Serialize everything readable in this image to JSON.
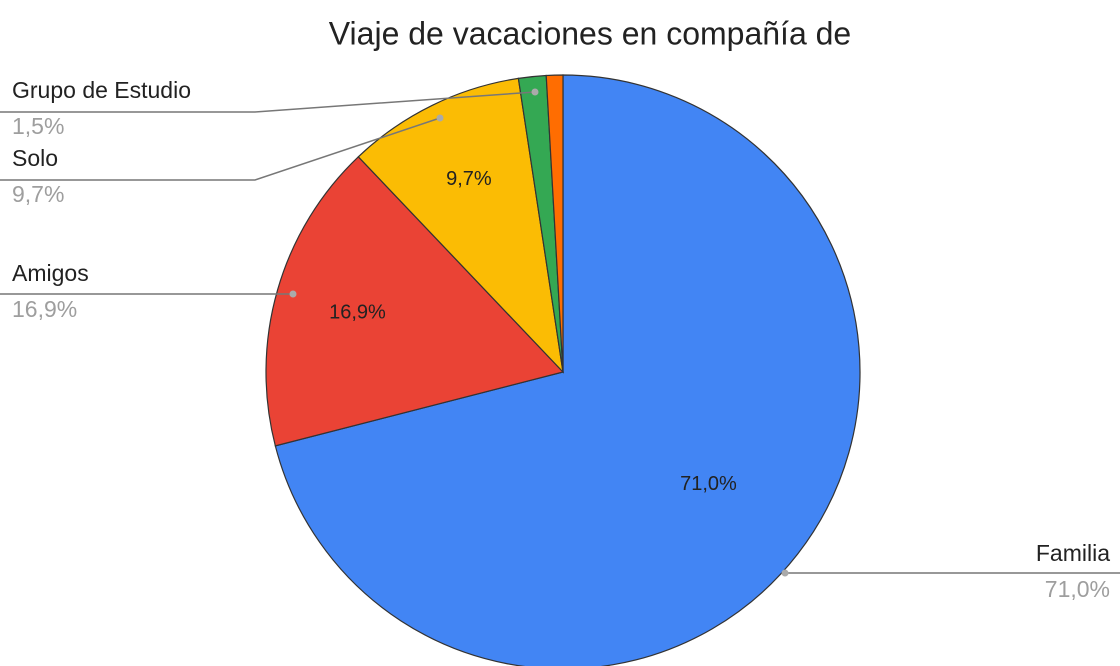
{
  "chart_data": {
    "type": "pie",
    "title": "Viaje de vacaciones en compañía de",
    "categories": [
      "Familia",
      "Amigos",
      "Solo",
      "Grupo de Estudio",
      null
    ],
    "values": [
      71.0,
      16.9,
      9.7,
      1.5,
      0.9
    ],
    "value_labels": [
      "71,0%",
      "16,9%",
      "9,7%",
      "1,5%",
      null
    ],
    "colors": [
      "#4285f4",
      "#ea4335",
      "#fbbc04",
      "#34a853",
      "#ff6d01"
    ]
  }
}
